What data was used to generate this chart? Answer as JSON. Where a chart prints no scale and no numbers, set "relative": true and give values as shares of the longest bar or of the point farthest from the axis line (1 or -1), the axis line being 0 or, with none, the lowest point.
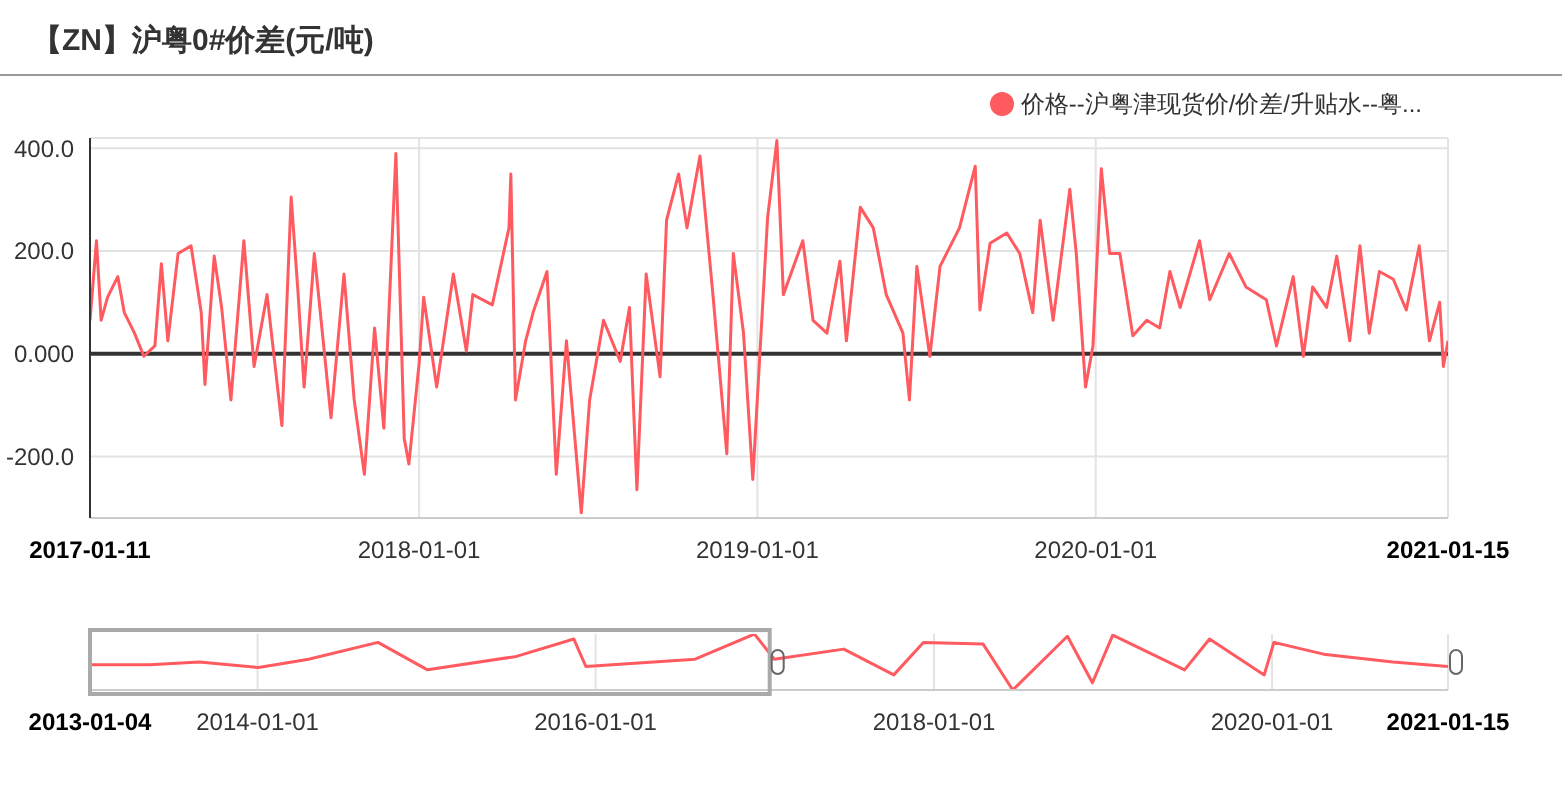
{
  "chart_data": [
    {
      "type": "line",
      "title": "【ZN】沪粤0#价差(元/吨)",
      "legend": "top right",
      "grid": true,
      "marker": "none",
      "line_style": "solid",
      "xlim": [
        "2017-01-11",
        "2021-01-15"
      ],
      "xticks": [
        "2017-01-11",
        "2018-01-01",
        "2019-01-01",
        "2020-01-01",
        "2021-01-15"
      ],
      "ylim": [
        -320,
        420
      ],
      "yticks": [
        {
          "value": -200,
          "label": "-200.0"
        },
        {
          "value": 0,
          "label": "0.000"
        },
        {
          "value": 200,
          "label": "200.0"
        },
        {
          "value": 400,
          "label": "400.0"
        }
      ],
      "ref_lines": [
        {
          "axis": "y",
          "value": 0,
          "color": "#333333"
        }
      ],
      "x": [
        "2017-01-11",
        "2017-01-18",
        "2017-01-23",
        "2017-01-30",
        "2017-02-10",
        "2017-02-17",
        "2017-02-28",
        "2017-03-10",
        "2017-03-22",
        "2017-03-29",
        "2017-04-05",
        "2017-04-16",
        "2017-04-30",
        "2017-05-11",
        "2017-05-15",
        "2017-05-25",
        "2017-06-02",
        "2017-06-12",
        "2017-06-26",
        "2017-07-07",
        "2017-07-21",
        "2017-08-06",
        "2017-08-16",
        "2017-08-23",
        "2017-08-30",
        "2017-09-10",
        "2017-09-28",
        "2017-10-12",
        "2017-10-23",
        "2017-11-03",
        "2017-11-14",
        "2017-11-24",
        "2017-12-07",
        "2017-12-16",
        "2017-12-21",
        "2018-01-01",
        "2018-01-06",
        "2018-01-20",
        "2018-02-07",
        "2018-02-21",
        "2018-02-28",
        "2018-03-21",
        "2018-04-08",
        "2018-04-10",
        "2018-04-15",
        "2018-04-26",
        "2018-05-04",
        "2018-05-19",
        "2018-05-29",
        "2018-06-09",
        "2018-06-25",
        "2018-07-04",
        "2018-07-19",
        "2018-08-06",
        "2018-08-16",
        "2018-08-24",
        "2018-09-03",
        "2018-09-18",
        "2018-09-25",
        "2018-10-08",
        "2018-10-17",
        "2018-10-31",
        "2018-11-14",
        "2018-11-29",
        "2018-12-06",
        "2018-12-17",
        "2018-12-27",
        "2019-01-12",
        "2019-01-22",
        "2019-01-29",
        "2019-02-19",
        "2019-03-02",
        "2019-03-17",
        "2019-03-31",
        "2019-04-07",
        "2019-04-22",
        "2019-05-06",
        "2019-05-20",
        "2019-06-07",
        "2019-06-14",
        "2019-06-22",
        "2019-07-06",
        "2019-07-17",
        "2019-08-07",
        "2019-08-24",
        "2019-08-29",
        "2019-09-09",
        "2019-09-27",
        "2019-10-11",
        "2019-10-25",
        "2019-11-02",
        "2019-11-16",
        "2019-12-04",
        "2019-12-11",
        "2019-12-21",
        "2019-12-29",
        "2020-01-07",
        "2020-01-16",
        "2020-01-27",
        "2020-02-10",
        "2020-02-25",
        "2020-03-10",
        "2020-03-21",
        "2020-04-01",
        "2020-04-22",
        "2020-05-03",
        "2020-05-24",
        "2020-06-11",
        "2020-07-03",
        "2020-07-14",
        "2020-08-01",
        "2020-08-12",
        "2020-08-22",
        "2020-09-06",
        "2020-09-17",
        "2020-10-01",
        "2020-10-12",
        "2020-10-22",
        "2020-11-02",
        "2020-11-17",
        "2020-12-01",
        "2020-12-15",
        "2020-12-26",
        "2021-01-06",
        "2021-01-10",
        "2021-01-15"
      ],
      "series": [
        {
          "name": "价格--沪粤津现货价/价差/升贴水--粤...",
          "color": "#ff5a5f",
          "values": [
            65,
            220,
            65,
            110,
            150,
            80,
            40,
            -5,
            15,
            175,
            25,
            195,
            210,
            80,
            -60,
            190,
            90,
            -90,
            220,
            -25,
            115,
            -140,
            305,
            130,
            -65,
            195,
            -125,
            155,
            -90,
            -235,
            50,
            -145,
            390,
            -165,
            -215,
            -20,
            110,
            -65,
            155,
            5,
            115,
            95,
            245,
            350,
            -90,
            25,
            80,
            160,
            -235,
            25,
            -310,
            -90,
            65,
            -15,
            90,
            -265,
            155,
            -45,
            260,
            350,
            245,
            385,
            115,
            -195,
            195,
            40,
            -245,
            265,
            415,
            115,
            220,
            65,
            40,
            180,
            25,
            285,
            245,
            115,
            40,
            -90,
            170,
            -5,
            170,
            245,
            365,
            85,
            215,
            235,
            195,
            80,
            260,
            65,
            320,
            195,
            -65,
            15,
            360,
            195,
            195,
            35,
            65,
            50,
            160,
            90,
            220,
            105,
            195,
            130,
            105,
            15,
            150,
            -5,
            130,
            90,
            190,
            25,
            210,
            40,
            160,
            145,
            85,
            210,
            25,
            100,
            -25,
            25
          ]
        }
      ]
    },
    {
      "type": "line",
      "relative": true,
      "tick_labels": "x",
      "grid": "x",
      "marker": "none",
      "xlim": [
        "2013-01-04",
        "2021-01-15"
      ],
      "xticks": [
        "2013-01-04",
        "2014-01-01",
        "2016-01-01",
        "2018-01-01",
        "2020-01-01",
        "2021-01-15"
      ],
      "x": [
        "2013-01-04",
        "2013-05-13",
        "2013-08-28",
        "2014-01-03",
        "2014-04-21",
        "2014-09-18",
        "2015-01-03",
        "2015-07-14",
        "2015-11-15",
        "2015-12-11",
        "2016-08-03",
        "2016-12-09",
        "2017-01-21",
        "2017-06-20",
        "2017-10-06",
        "2017-12-09",
        "2018-04-17",
        "2018-06-20",
        "2018-10-16",
        "2018-12-09",
        "2019-01-22",
        "2019-06-26",
        "2019-08-19",
        "2019-12-15",
        "2020-01-05",
        "2020-04-21",
        "2020-09-18",
        "2021-01-15"
      ],
      "series": [
        {
          "color": "#ff5a5f",
          "values": [
            0.45,
            0.45,
            0.5,
            0.4,
            0.55,
            0.85,
            0.36,
            0.6,
            0.91,
            0.42,
            0.55,
            1,
            0.55,
            0.73,
            0.27,
            0.85,
            0.82,
            0,
            0.96,
            0.13,
            0.98,
            0.36,
            0.91,
            0.27,
            0.85,
            0.64,
            0.5,
            0.42
          ]
        }
      ]
    }
  ]
}
